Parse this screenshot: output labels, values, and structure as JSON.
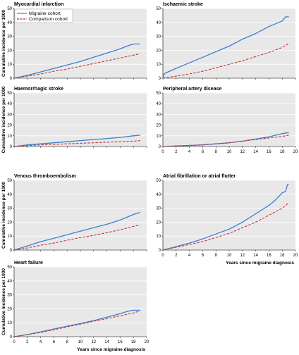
{
  "figure": {
    "x_axis_label": "Years since migraine diagnosis",
    "y_axis_label": "Cumulative incidence per 1000",
    "legend": [
      {
        "label": "Migraine cohort",
        "color": "#3b7fd4",
        "style": "solid"
      },
      {
        "label": "Comparison cohort",
        "color": "#cc3333",
        "style": "dashed"
      }
    ],
    "colors": {
      "migraine": "#3b7fd4",
      "comparison": "#cc3333",
      "panel_bg": "#e8e8e8",
      "grid": "#ffffff"
    }
  },
  "chart_data": [
    {
      "type": "line",
      "title": "Myocardial infarction",
      "ylabel": "Cumulative incidence per 1000",
      "xlabel": "",
      "xlim": [
        0,
        20
      ],
      "ylim": [
        0,
        50
      ],
      "x_ticks": [
        "0",
        "2",
        "4",
        "6",
        "8",
        "10",
        "12",
        "14",
        "16",
        "18",
        "20"
      ],
      "y_ticks": [
        "0",
        "10",
        "20",
        "30",
        "40",
        "50"
      ],
      "legend": "top-left",
      "series": [
        {
          "name": "Migraine cohort",
          "x": [
            0,
            2,
            4,
            6,
            8,
            10,
            12,
            14,
            16,
            17,
            18,
            19
          ],
          "values": [
            0,
            2,
            4.5,
            7,
            9.5,
            12,
            15,
            18,
            21,
            23,
            24.5,
            24.5
          ]
        },
        {
          "name": "Comparison cohort",
          "x": [
            0,
            2,
            4,
            6,
            8,
            10,
            12,
            14,
            16,
            18,
            19
          ],
          "values": [
            0,
            1.5,
            3,
            5,
            6.5,
            8.5,
            10.5,
            12.5,
            14.5,
            16.5,
            17.5
          ]
        }
      ]
    },
    {
      "type": "line",
      "title": "Ischaemic stroke",
      "ylabel": "",
      "xlabel": "",
      "xlim": [
        0,
        20
      ],
      "ylim": [
        0,
        50
      ],
      "x_ticks": [
        "0",
        "2",
        "4",
        "6",
        "8",
        "10",
        "12",
        "14",
        "16",
        "18",
        "20"
      ],
      "y_ticks": [
        "0",
        "10",
        "20",
        "30",
        "40",
        "50"
      ],
      "series": [
        {
          "name": "Migraine cohort",
          "x": [
            0,
            0.1,
            0.3,
            1,
            2,
            4,
            6,
            8,
            10,
            12,
            14,
            16,
            18,
            18.5,
            19
          ],
          "values": [
            0,
            2,
            3.5,
            5,
            7,
            11,
            15,
            19,
            23,
            28,
            32,
            37,
            41,
            44,
            44
          ]
        },
        {
          "name": "Comparison cohort",
          "x": [
            0,
            2,
            4,
            6,
            8,
            10,
            12,
            14,
            16,
            18,
            19
          ],
          "values": [
            0,
            1.5,
            3,
            5,
            7.5,
            10,
            12.5,
            15.5,
            18.5,
            22,
            25
          ]
        }
      ]
    },
    {
      "type": "line",
      "title": "Haemorrhagic stroke",
      "ylabel": "Cumulative incidence per 1000",
      "xlabel": "",
      "xlim": [
        0,
        20
      ],
      "ylim": [
        0,
        50
      ],
      "x_ticks": [
        "0",
        "2",
        "4",
        "6",
        "8",
        "10",
        "12",
        "14",
        "16",
        "18",
        "20"
      ],
      "y_ticks": [
        "0",
        "10",
        "20",
        "30",
        "40",
        "50"
      ],
      "series": [
        {
          "name": "Migraine cohort",
          "x": [
            0,
            2,
            4,
            6,
            8,
            10,
            12,
            14,
            16,
            18,
            19
          ],
          "values": [
            0,
            1.5,
            2.5,
            3.5,
            4.5,
            5.5,
            6.5,
            7.5,
            8.5,
            10,
            10.5
          ]
        },
        {
          "name": "Comparison cohort",
          "x": [
            0,
            2,
            4,
            6,
            8,
            10,
            12,
            14,
            16,
            18,
            19
          ],
          "values": [
            0,
            0.8,
            1.5,
            2,
            2.5,
            3,
            3.5,
            4,
            4.5,
            5,
            5.5
          ]
        }
      ]
    },
    {
      "type": "line",
      "title": "Peripheral artery disease",
      "ylabel": "",
      "xlabel": "",
      "xlim": [
        0,
        20
      ],
      "ylim": [
        0,
        50
      ],
      "x_ticks": [
        "0",
        "2",
        "4",
        "6",
        "8",
        "10",
        "12",
        "14",
        "16",
        "18",
        "20"
      ],
      "y_ticks": [
        "0",
        "10",
        "20",
        "30",
        "40",
        "50"
      ],
      "series": [
        {
          "name": "Migraine cohort",
          "x": [
            0,
            2,
            4,
            6,
            8,
            10,
            12,
            14,
            16,
            18,
            19
          ],
          "values": [
            0,
            0.5,
            1,
            1.5,
            2.5,
            3.5,
            5,
            7,
            9,
            12,
            13
          ]
        },
        {
          "name": "Comparison cohort",
          "x": [
            0,
            2,
            4,
            6,
            8,
            10,
            12,
            14,
            16,
            18,
            19
          ],
          "values": [
            0,
            0.5,
            1,
            1.5,
            2.5,
            3.5,
            5,
            6.5,
            8,
            9.5,
            10.5
          ]
        }
      ]
    },
    {
      "type": "line",
      "title": "Venous thromboembolism",
      "ylabel": "Cumulative incidence per 1000",
      "xlabel": "",
      "xlim": [
        0,
        20
      ],
      "ylim": [
        0,
        50
      ],
      "x_ticks": [
        "0",
        "2",
        "4",
        "6",
        "8",
        "10",
        "12",
        "14",
        "16",
        "18",
        "20"
      ],
      "y_ticks": [
        "0",
        "10",
        "20",
        "30",
        "40",
        "50"
      ],
      "series": [
        {
          "name": "Migraine cohort",
          "x": [
            0,
            2,
            4,
            6,
            8,
            10,
            12,
            14,
            16,
            18,
            19
          ],
          "values": [
            0,
            3,
            6,
            8.5,
            11,
            13.5,
            16,
            18.5,
            21.5,
            25.5,
            27
          ]
        },
        {
          "name": "Comparison cohort",
          "x": [
            0,
            2,
            4,
            6,
            8,
            10,
            12,
            14,
            16,
            18,
            19
          ],
          "values": [
            0,
            1.5,
            3.5,
            5,
            7,
            9,
            10.5,
            12.5,
            14.5,
            17,
            18
          ]
        }
      ]
    },
    {
      "type": "line",
      "title": "Atrial fibrillation or atrial flutter",
      "ylabel": "",
      "xlabel": "Years since migraine diagnosis",
      "xlim": [
        0,
        20
      ],
      "ylim": [
        0,
        50
      ],
      "x_ticks": [
        "0",
        "2",
        "4",
        "6",
        "8",
        "10",
        "12",
        "14",
        "16",
        "18",
        "20"
      ],
      "y_ticks": [
        "0",
        "10",
        "20",
        "30",
        "40",
        "50"
      ],
      "series": [
        {
          "name": "Migraine cohort",
          "x": [
            0,
            2,
            4,
            6,
            8,
            10,
            12,
            14,
            16,
            17,
            18,
            18.5,
            18.8,
            19
          ],
          "values": [
            0,
            2.5,
            5,
            8,
            11.5,
            15,
            20,
            26,
            32,
            36,
            41,
            42,
            47,
            47
          ]
        },
        {
          "name": "Comparison cohort",
          "x": [
            0,
            2,
            4,
            6,
            8,
            10,
            12,
            14,
            16,
            18,
            19
          ],
          "values": [
            0,
            2,
            4,
            6,
            9,
            12,
            16,
            20,
            25,
            30,
            34
          ]
        }
      ]
    },
    {
      "type": "line",
      "title": "Heart failure",
      "ylabel": "Cumulative incidence per 1000",
      "xlabel": "Years since migraine diagnosis",
      "xlim": [
        0,
        20
      ],
      "ylim": [
        0,
        50
      ],
      "x_ticks": [
        "0",
        "2",
        "4",
        "6",
        "8",
        "10",
        "12",
        "14",
        "16",
        "18",
        "20"
      ],
      "y_ticks": [
        "0",
        "10",
        "20",
        "30",
        "40",
        "50"
      ],
      "series": [
        {
          "name": "Migraine cohort",
          "x": [
            0,
            2,
            4,
            6,
            8,
            10,
            12,
            14,
            16,
            17,
            18,
            19
          ],
          "values": [
            0,
            1.5,
            3.5,
            5.5,
            7.5,
            9.5,
            11.5,
            14,
            16.5,
            18,
            19,
            19
          ]
        },
        {
          "name": "Comparison cohort",
          "x": [
            0,
            2,
            4,
            6,
            8,
            10,
            12,
            14,
            16,
            18,
            19
          ],
          "values": [
            0,
            1.5,
            3,
            5,
            7,
            9,
            11,
            13,
            15,
            17,
            18.5
          ]
        }
      ]
    }
  ]
}
